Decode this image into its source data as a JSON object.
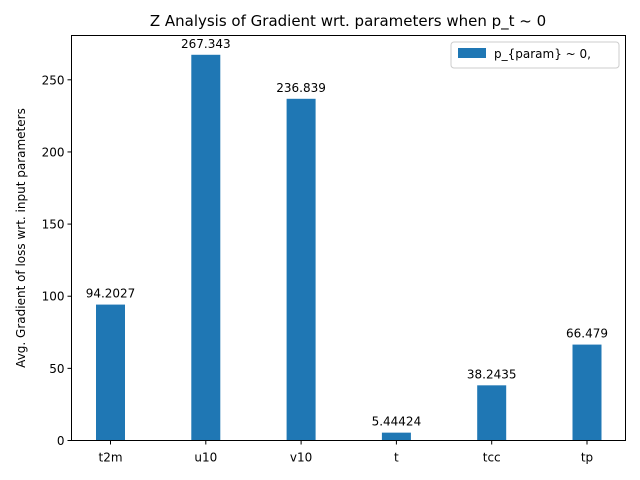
{
  "chart_data": {
    "type": "bar",
    "title": "Z Analysis of Gradient wrt. parameters when p_t ~ 0",
    "xlabel": "",
    "ylabel": "Avg. Gradient of loss wrt. input parameters",
    "categories": [
      "t2m",
      "u10",
      "v10",
      "t",
      "tcc",
      "tp"
    ],
    "series": [
      {
        "name": "p_{param} ~ 0,",
        "values": [
          94.2027,
          267.343,
          236.839,
          5.44424,
          38.2435,
          66.479
        ],
        "labels": [
          "94.2027",
          "267.343",
          "236.839",
          "5.44424",
          "38.2435",
          "66.479"
        ],
        "color": "#1f77b4"
      }
    ],
    "ylim": [
      0,
      280.71
    ],
    "yticks": [
      0,
      50,
      100,
      150,
      200,
      250
    ],
    "grid": false,
    "legend_position": "top-right"
  }
}
